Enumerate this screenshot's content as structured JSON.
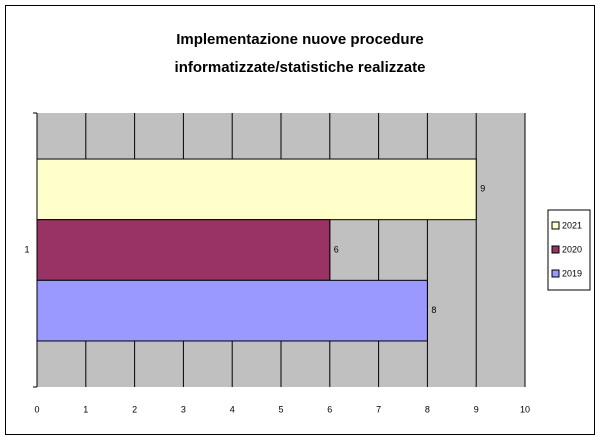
{
  "chart_data": {
    "type": "bar",
    "orientation": "horizontal",
    "title": [
      "Implementazione nuove procedure",
      "informatizzate/statistiche realizzate"
    ],
    "categories": [
      "1"
    ],
    "series": [
      {
        "name": "2021",
        "color": "#ffffcc",
        "values": [
          9
        ]
      },
      {
        "name": "2020",
        "color": "#993366",
        "values": [
          6
        ]
      },
      {
        "name": "2019",
        "color": "#9999ff",
        "values": [
          8
        ]
      }
    ],
    "xlim": [
      0,
      10
    ],
    "xticks": [
      0,
      1,
      2,
      3,
      4,
      5,
      6,
      7,
      8,
      9,
      10
    ],
    "grid": true,
    "legend": "right"
  }
}
